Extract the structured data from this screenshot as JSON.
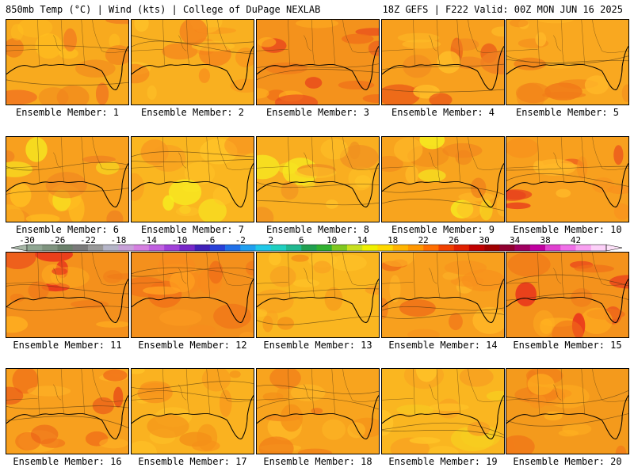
{
  "header": {
    "left": "850mb Temp (°C) | Wind (kts) | College of DuPage NEXLAB",
    "right": "18Z GEFS | F222 Valid: 00Z MON JUN 16 2025"
  },
  "colorbar": {
    "ticks": [
      "-30",
      "-26",
      "-22",
      "-18",
      "-14",
      "-10",
      "-6",
      "-2",
      "2",
      "6",
      "10",
      "14",
      "18",
      "22",
      "26",
      "30",
      "34",
      "38",
      "42"
    ],
    "colors": [
      "#8fa692",
      "#7f947f",
      "#6b806b",
      "#7a7a7a",
      "#999999",
      "#b5b5c8",
      "#c8a0d8",
      "#d580e0",
      "#c060e0",
      "#a040d8",
      "#7828c8",
      "#4020b8",
      "#2840d8",
      "#2070e8",
      "#20a0f0",
      "#20c8e8",
      "#20d0c0",
      "#20b890",
      "#20a050",
      "#30b030",
      "#80c820",
      "#c8e020",
      "#f0f000",
      "#ffd800",
      "#ffb400",
      "#ff9600",
      "#ff6e00",
      "#f04000",
      "#e02000",
      "#c00000",
      "#a00000",
      "#900030",
      "#a00060",
      "#c000a0",
      "#e040d0",
      "#f070e8",
      "#f8a0f0",
      "#fcd0f8"
    ]
  },
  "panels": [
    {
      "label": "Ensemble Member: 1",
      "base": "#f8aa1e",
      "blobs": [
        "#f0801c",
        "#ffc020",
        "#f07020"
      ]
    },
    {
      "label": "Ensemble Member: 2",
      "base": "#f9b020",
      "blobs": [
        "#f8901c",
        "#ffc428",
        "#f4801c"
      ]
    },
    {
      "label": "Ensemble Member: 3",
      "base": "#f4921c",
      "blobs": [
        "#e8401c",
        "#f07018",
        "#ffb020"
      ]
    },
    {
      "label": "Ensemble Member: 4",
      "base": "#f8a01e",
      "blobs": [
        "#f08020",
        "#ffc028",
        "#e85018"
      ]
    },
    {
      "label": "Ensemble Member: 5",
      "base": "#f9a820",
      "blobs": [
        "#f48c1c",
        "#ffb828",
        "#f07a18"
      ]
    },
    {
      "label": "Ensemble Member: 6",
      "base": "#f8a01e",
      "blobs": [
        "#f08420",
        "#ffc020",
        "#f6f020"
      ]
    },
    {
      "label": "Ensemble Member: 7",
      "base": "#fab620",
      "blobs": [
        "#f89a20",
        "#ffc428",
        "#f6f020"
      ]
    },
    {
      "label": "Ensemble Member: 8",
      "base": "#f9ae20",
      "blobs": [
        "#f09020",
        "#ffc428",
        "#f6e820"
      ]
    },
    {
      "label": "Ensemble Member: 9",
      "base": "#f8a41e",
      "blobs": [
        "#f0841c",
        "#ffbc28",
        "#f6f020"
      ]
    },
    {
      "label": "Ensemble Member: 10",
      "base": "#f8a01e",
      "blobs": [
        "#e8401c",
        "#f8901c",
        "#ffb828"
      ]
    },
    {
      "label": "Ensemble Member: 11",
      "base": "#f4901c",
      "blobs": [
        "#e8301c",
        "#f07a18",
        "#ffb020"
      ]
    },
    {
      "label": "Ensemble Member: 12",
      "base": "#f4901c",
      "blobs": [
        "#f07018",
        "#ffa020",
        "#f88a1c"
      ]
    },
    {
      "label": "Ensemble Member: 13",
      "base": "#fab620",
      "blobs": [
        "#f8a020",
        "#ffc428",
        "#f49018"
      ]
    },
    {
      "label": "Ensemble Member: 14",
      "base": "#f8a01e",
      "blobs": [
        "#f07018",
        "#ffb828",
        "#f8901c"
      ]
    },
    {
      "label": "Ensemble Member: 15",
      "base": "#f4921c",
      "blobs": [
        "#e8301c",
        "#f07018",
        "#ffb020"
      ]
    },
    {
      "label": "Ensemble Member: 16",
      "base": "#f8a01e",
      "blobs": [
        "#f07018",
        "#ffb828",
        "#e85018"
      ]
    },
    {
      "label": "Ensemble Member: 17",
      "base": "#fab220",
      "blobs": [
        "#f8941c",
        "#ffc428",
        "#f49018"
      ]
    },
    {
      "label": "Ensemble Member: 18",
      "base": "#f8a41e",
      "blobs": [
        "#f07a18",
        "#ffbc28",
        "#f49018"
      ]
    },
    {
      "label": "Ensemble Member: 19",
      "base": "#fab620",
      "blobs": [
        "#f8a020",
        "#ffc428",
        "#f6d020"
      ]
    },
    {
      "label": "Ensemble Member: 20",
      "base": "#f49a1c",
      "blobs": [
        "#f07818",
        "#ffb020",
        "#f8901c"
      ]
    }
  ]
}
